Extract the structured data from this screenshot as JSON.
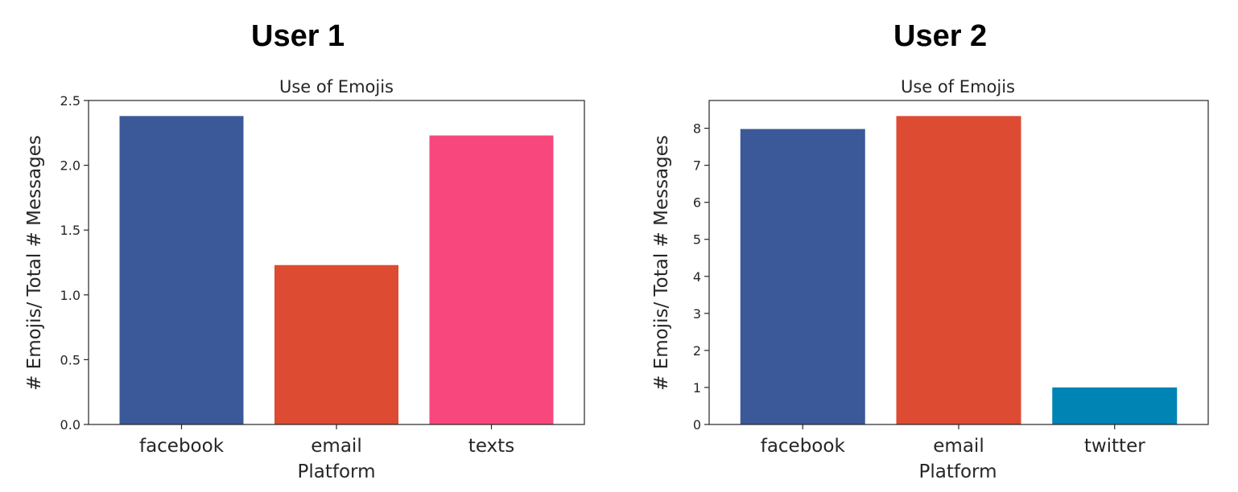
{
  "panels": [
    {
      "heading": "User 1",
      "chart_data": {
        "type": "bar",
        "title": "Use of Emojis",
        "xlabel": "Platform",
        "ylabel": "# Emojis/ Total # Messages",
        "categories": [
          "facebook",
          "email",
          "texts"
        ],
        "values": [
          2.38,
          1.23,
          2.23
        ],
        "colors": [
          "#3b5998",
          "#dd4b33",
          "#f7477d"
        ],
        "ylim": [
          0,
          2.5
        ],
        "yticks": [
          0.0,
          0.5,
          1.0,
          1.5,
          2.0,
          2.5
        ],
        "ytick_labels": [
          "0.0",
          "0.5",
          "1.0",
          "1.5",
          "2.0",
          "2.5"
        ],
        "grid": false,
        "legend": "none"
      }
    },
    {
      "heading": "User 2",
      "chart_data": {
        "type": "bar",
        "title": "Use of Emojis",
        "xlabel": "Platform",
        "ylabel": "# Emojis/ Total # Messages",
        "categories": [
          "facebook",
          "email",
          "twitter"
        ],
        "values": [
          7.98,
          8.33,
          1.0
        ],
        "colors": [
          "#3b5998",
          "#dd4b33",
          "#0084b4"
        ],
        "ylim": [
          0,
          8.75
        ],
        "yticks": [
          0,
          1,
          2,
          3,
          4,
          5,
          6,
          7,
          8
        ],
        "ytick_labels": [
          "0",
          "1",
          "2",
          "3",
          "4",
          "5",
          "6",
          "7",
          "8"
        ],
        "grid": false,
        "legend": "none"
      }
    }
  ]
}
